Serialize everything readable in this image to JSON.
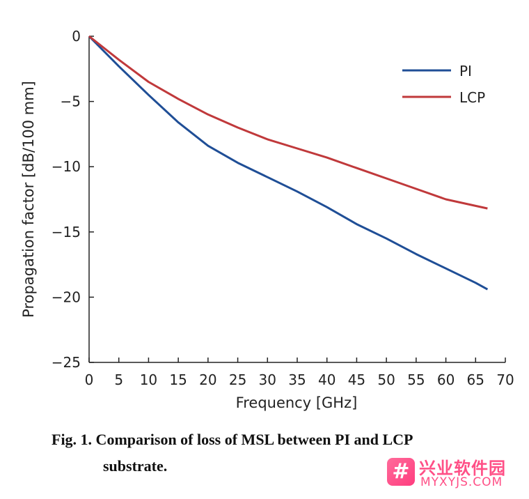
{
  "chart_data": {
    "type": "line",
    "x": [
      0,
      5,
      10,
      15,
      20,
      25,
      30,
      35,
      40,
      45,
      50,
      55,
      60,
      65,
      67
    ],
    "series": [
      {
        "name": "PI",
        "color": "#1f4e96",
        "values": [
          0,
          -2.3,
          -4.5,
          -6.6,
          -8.4,
          -9.7,
          -10.8,
          -11.9,
          -13.1,
          -14.4,
          -15.5,
          -16.7,
          -17.8,
          -18.9,
          -19.4
        ]
      },
      {
        "name": "LCP",
        "color": "#c0393b",
        "values": [
          0,
          -1.8,
          -3.5,
          -4.8,
          -6.0,
          -7.0,
          -7.9,
          -8.6,
          -9.3,
          -10.1,
          -10.9,
          -11.7,
          -12.5,
          -13.0,
          -13.2
        ]
      }
    ],
    "xlabel": "Frequency [GHz]",
    "ylabel": "Propagation factor [dB/100 mm]",
    "xlim": [
      0,
      70
    ],
    "ylim": [
      -25,
      0
    ],
    "xticks": [
      0,
      5,
      10,
      15,
      20,
      25,
      30,
      35,
      40,
      45,
      50,
      55,
      60,
      65,
      70
    ],
    "yticks": [
      0,
      -5,
      -10,
      -15,
      -20,
      -25
    ],
    "ytick_labels": [
      "0",
      "−5",
      "−10",
      "−15",
      "−20",
      "−25"
    ],
    "grid": false,
    "legend_position": "top-right"
  },
  "caption": {
    "line1": "Fig. 1. Comparison of loss of MSL between PI and LCP",
    "line2": "substrate."
  },
  "watermark": {
    "icon": "#",
    "chinese": "兴业软件园",
    "url": "MYXYJS.COM"
  }
}
